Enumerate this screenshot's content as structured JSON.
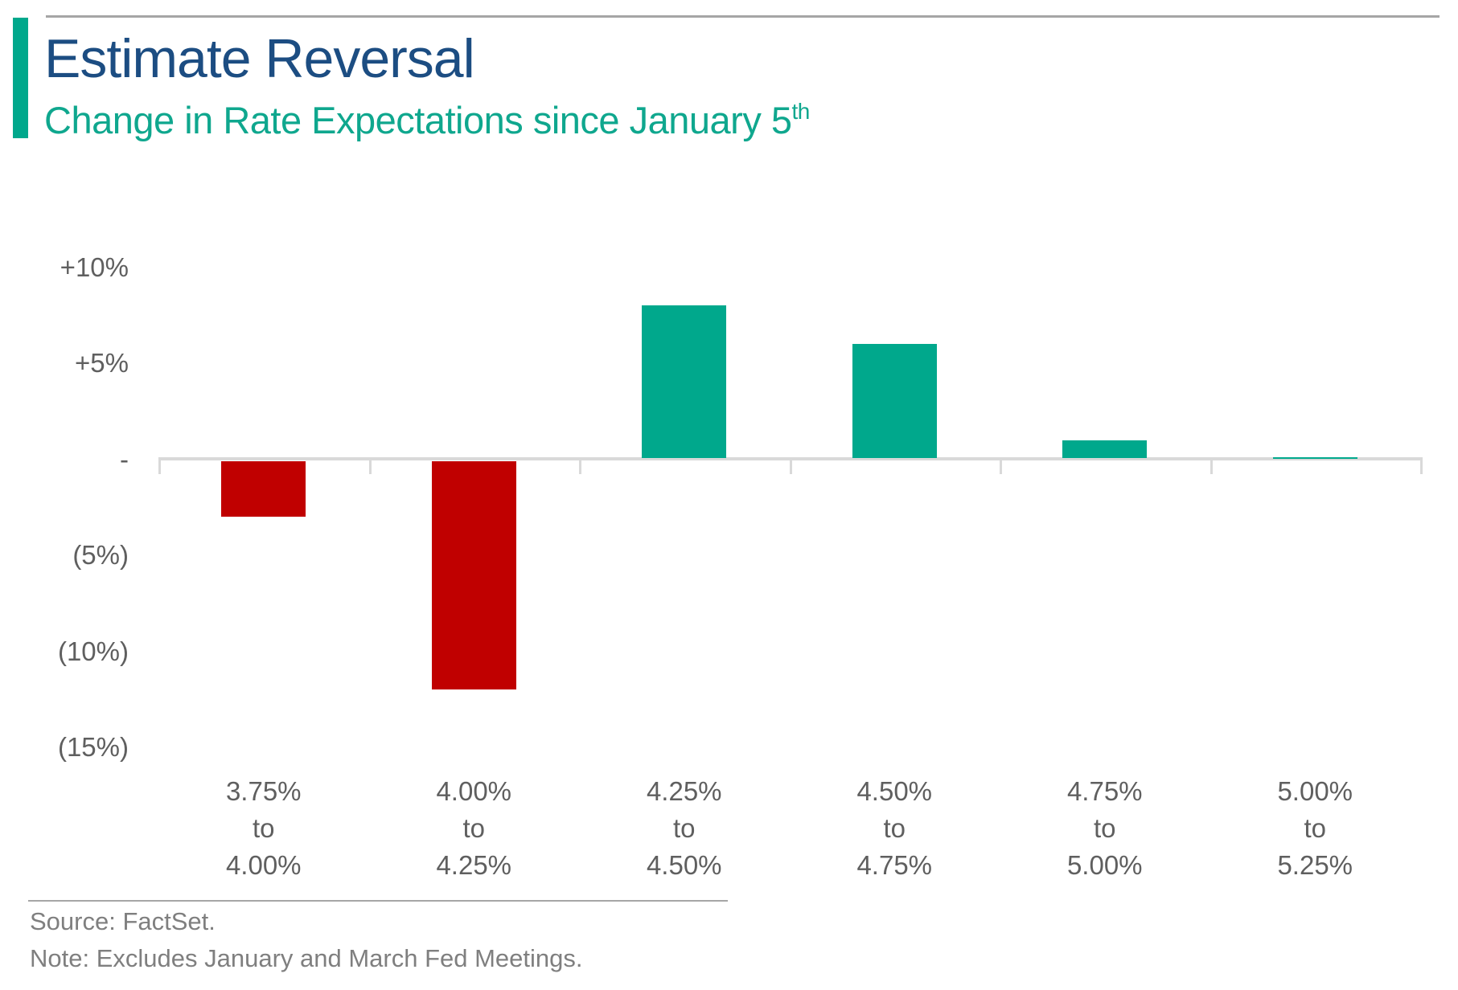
{
  "header": {
    "title": "Estimate Reversal",
    "subtitle": "Change in Rate Expectations since January 5",
    "subtitle_superscript": "th"
  },
  "chart_data": {
    "type": "bar",
    "title": "Estimate Reversal",
    "subtitle": "Change in Rate Expectations since January 5th",
    "categories": [
      "3.75% to 4.00%",
      "4.00% to 4.25%",
      "4.25% to 4.50%",
      "4.50% to 4.75%",
      "4.75% to 5.00%",
      "5.00% to 5.25%"
    ],
    "values": [
      -3,
      -12,
      8,
      6,
      1,
      0.1
    ],
    "category_label_separator_word": "to",
    "y_ticks": [
      {
        "value": 10,
        "label": "+10%"
      },
      {
        "value": 5,
        "label": "+5%"
      },
      {
        "value": 0,
        "label": "-"
      },
      {
        "value": -5,
        "label": "(5%)"
      },
      {
        "value": -10,
        "label": "(10%)"
      },
      {
        "value": -15,
        "label": "(15%)"
      }
    ],
    "ylim": [
      -15,
      11
    ],
    "xlabel": "",
    "ylabel": "",
    "grid": false,
    "legend": false,
    "bar_colors_by_sign": {
      "positive": "#00A88C",
      "negative": "#C00000"
    }
  },
  "footer": {
    "source": "Source: FactSet.",
    "note": "Note: Excludes January and March Fed Meetings."
  },
  "colors": {
    "accent_teal": "#00A88C",
    "title_blue": "#1C4D82",
    "subtitle_teal": "#0FA78E",
    "bar_positive": "#00A88C",
    "bar_negative": "#C00000",
    "axis_line_gray": "#D9D9D9",
    "rule_gray": "#A6A6A6",
    "axis_text_gray": "#5F5F5F",
    "footer_text_gray": "#7F7F7F"
  }
}
